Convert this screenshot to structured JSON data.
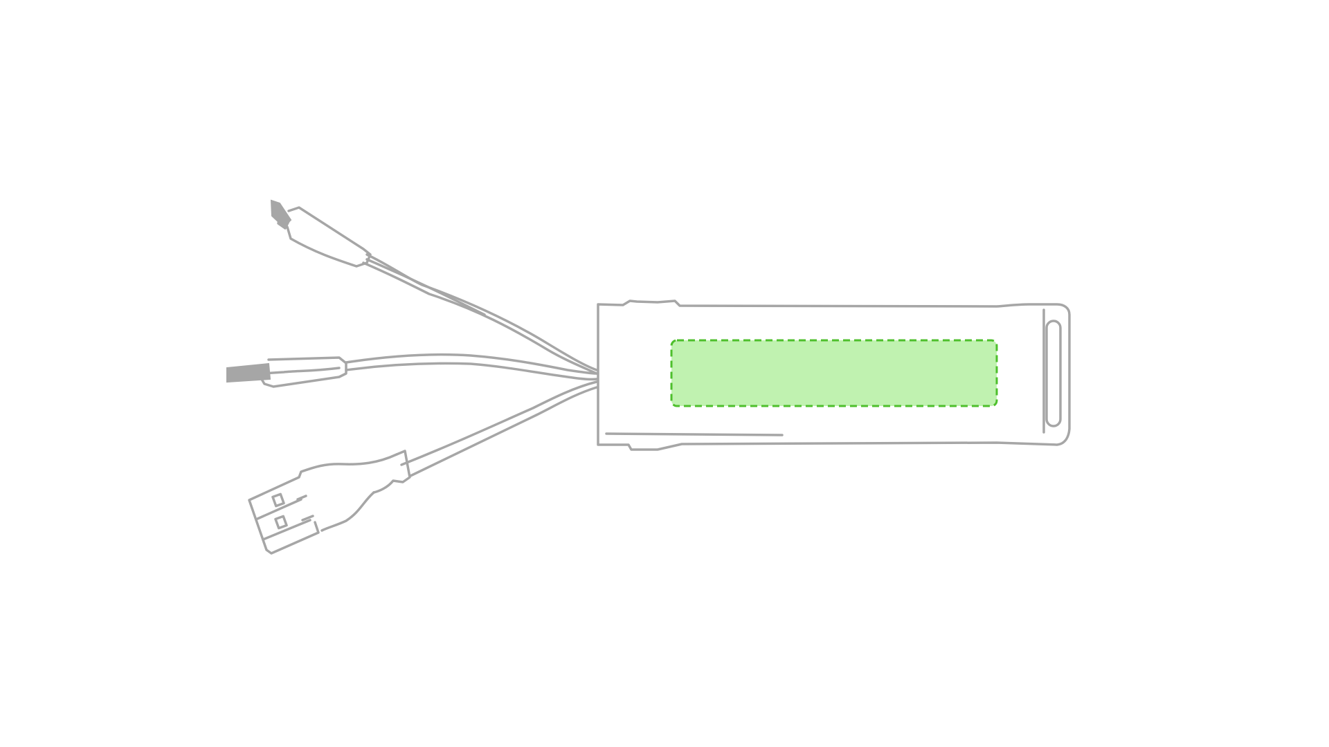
{
  "illustration": {
    "subject": "multi-connector-usb-cable",
    "connectors": [
      "micro-usb-icon",
      "lightning-icon",
      "usb-a-icon"
    ],
    "colors": {
      "background": "#ffffff",
      "outline": "#a6a6a6",
      "connector_tip": "#a6a6a6",
      "print_area_fill": "#c0f2b0",
      "print_area_border": "#4dbf2b"
    }
  }
}
